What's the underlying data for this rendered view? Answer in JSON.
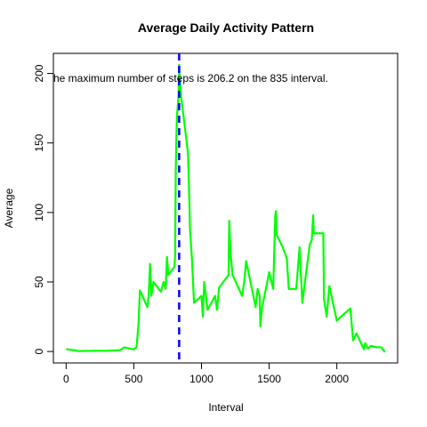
{
  "chart_data": {
    "type": "line",
    "title": "Average Daily Activity Pattern",
    "xlabel": "Interval",
    "ylabel": "Average",
    "annotation": "he maximum number of steps is 206.2 on the 835 interval.",
    "vline": 835,
    "vline_color": "#0000ff",
    "color": "#00ff00",
    "xlim": [
      -94.2,
      2449.2
    ],
    "ylim": [
      -8.248,
      214.448
    ],
    "xticks": [
      0,
      500,
      1000,
      1500,
      2000
    ],
    "yticks": [
      0,
      50,
      100,
      150,
      200
    ],
    "x": [
      0,
      100,
      200,
      300,
      400,
      430,
      500,
      520,
      535,
      545,
      600,
      610,
      620,
      630,
      645,
      700,
      720,
      735,
      745,
      755,
      800,
      805,
      810,
      815,
      820,
      830,
      835,
      840,
      850,
      900,
      910,
      915,
      930,
      945,
      1000,
      1010,
      1020,
      1045,
      1100,
      1115,
      1130,
      1200,
      1205,
      1215,
      1230,
      1300,
      1315,
      1330,
      1400,
      1415,
      1430,
      1435,
      1445,
      1500,
      1530,
      1545,
      1550,
      1555,
      1600,
      1630,
      1645,
      1700,
      1725,
      1745,
      1800,
      1815,
      1825,
      1830,
      1900,
      1905,
      1925,
      1945,
      2000,
      2030,
      2100,
      2120,
      2145,
      2200,
      2210,
      2230,
      2250,
      2300,
      2330,
      2350,
      2355
    ],
    "values": [
      1.7,
      0.3,
      0.5,
      0.5,
      1,
      3,
      1.5,
      3,
      20,
      44,
      32,
      40,
      63,
      40,
      50,
      43,
      50,
      45,
      68,
      55,
      61,
      68,
      130,
      157,
      171,
      183,
      206.2,
      196,
      183,
      143,
      110,
      88,
      66,
      35,
      40,
      25,
      50,
      30,
      40,
      30,
      46,
      55,
      94,
      70,
      55,
      40,
      50,
      65,
      32,
      45,
      40,
      18,
      30,
      57,
      45,
      98,
      101,
      84,
      75,
      67,
      45,
      45,
      75,
      35,
      77,
      80,
      98,
      85,
      85,
      38,
      25,
      47,
      22,
      25,
      31,
      8,
      13,
      1.6,
      6,
      2,
      4,
      3,
      3,
      0,
      1
    ]
  }
}
